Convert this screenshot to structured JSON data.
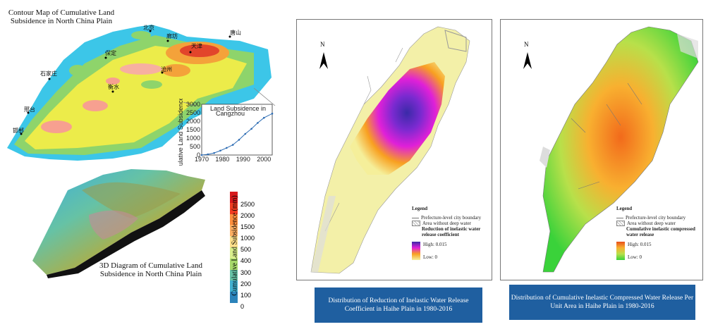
{
  "contour_map": {
    "title": "Contour Map of Cumulative Land Subsidence in North China Plain",
    "cities": [
      "北京",
      "廊坊",
      "唐山",
      "天津",
      "保定",
      "沧州",
      "石家庄",
      "衡水",
      "邢台",
      "邯郸"
    ]
  },
  "inset_chart": {
    "legend": "Land Subsidence in",
    "legend_highlight": "Cangzhou",
    "ylabel": "Cumulative Land Subsidence (mm)",
    "y_ticks": [
      "0",
      "500",
      "1000",
      "1500",
      "2000",
      "2500",
      "3000"
    ],
    "x_ticks": [
      "1970",
      "1980",
      "1990",
      "2000"
    ]
  },
  "chart_data": {
    "type": "line",
    "x": [
      1970,
      1973,
      1976,
      1979,
      1982,
      1985,
      1988,
      1991,
      1994,
      1997,
      2000,
      2004
    ],
    "series": [
      {
        "values": [
          0,
          40,
          120,
          260,
          420,
          600,
          900,
          1250,
          1550,
          1900,
          2200,
          2450
        ]
      }
    ],
    "xlim": [
      1970,
      2004
    ],
    "ylim": [
      0,
      3000
    ],
    "ylabel": "Cumulative Land Subsidence (mm)"
  },
  "diagram_3d": {
    "title": "3D Diagram of Cumulative Land Subsidence in North China Plain"
  },
  "colorbar": {
    "label": "Cumulative Land Subsidence (mm)",
    "ticks": [
      "2500",
      "2000",
      "1500",
      "1000",
      "500",
      "400",
      "300",
      "200",
      "100",
      "0"
    ],
    "colors": [
      "#d7191c",
      "#f03b20",
      "#fd8d3c",
      "#fdae61",
      "#fee08b",
      "#d9ef8b",
      "#a6d96a",
      "#66c2a5",
      "#3fb0d0",
      "#2b83ba"
    ]
  },
  "map_left": {
    "north": "N",
    "legend_title": "Legend",
    "legend_items": [
      "Prefecture-level city boundary",
      "Area without deep water",
      "Reduction of inelastic water release coefficient"
    ],
    "high": "High: 0.015",
    "low": "Low: 0",
    "caption": "Distribution of Reduction of Inelastic Water Release Coefficient in Haihe Plain in 1980-2016"
  },
  "map_right": {
    "north": "N",
    "legend_title": "Legend",
    "legend_items": [
      "Prefecture-level city boundary",
      "Area without deep water",
      "Cumulative inelastic compressed water release"
    ],
    "high": "High: 0.015",
    "low": "Low: 0",
    "caption": "Distribution of Cumulative Inelastic Compressed Water Release Per Unit Area in Haihe Plain in 1980-2016"
  }
}
